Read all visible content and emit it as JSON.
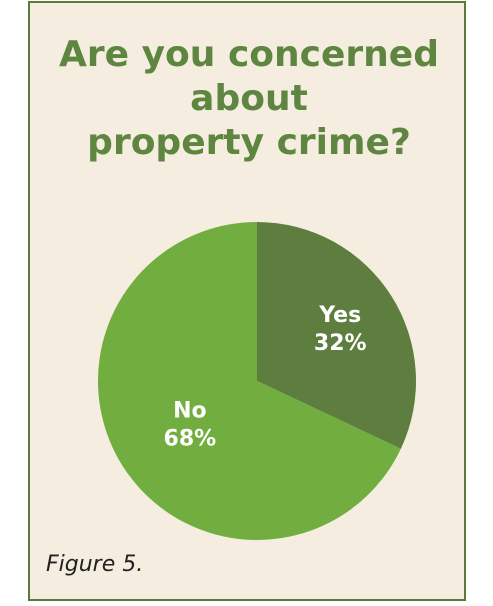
{
  "title_lines": [
    "Are you concerned",
    "about",
    "property crime?"
  ],
  "caption": "Figure 5.",
  "colors": {
    "card_bg": "#f5ede0",
    "border": "#5a7a3c",
    "title": "#5e8640",
    "yes_slice": "#5d7e3e",
    "no_slice": "#72ad3f",
    "label": "#ffffff"
  },
  "chart_data": {
    "type": "pie",
    "title": "Are you concerned about property crime?",
    "slices": [
      {
        "name": "Yes",
        "value": 32,
        "label_pct": "32%"
      },
      {
        "name": "No",
        "value": 68,
        "label_pct": "68%"
      }
    ],
    "start_angle": "12 o'clock",
    "direction": "clockwise",
    "legend": "none"
  }
}
